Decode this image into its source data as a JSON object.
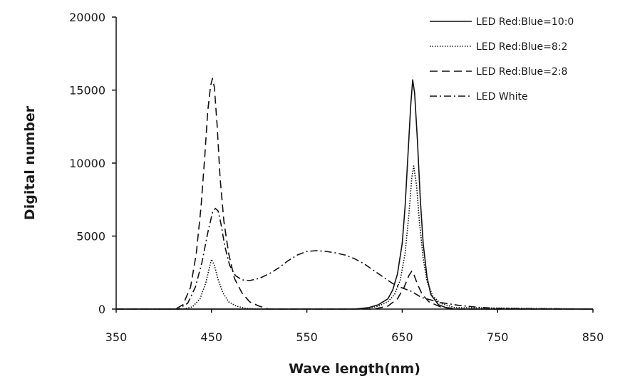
{
  "chart_data": {
    "type": "line",
    "title": "",
    "xlabel": "Wave length(nm)",
    "ylabel": "Digital number",
    "xlim": [
      350,
      850
    ],
    "ylim": [
      0,
      20000
    ],
    "xticks": [
      "350",
      "450",
      "550",
      "650",
      "750",
      "850"
    ],
    "yticks": [
      "0",
      "5000",
      "10000",
      "15000",
      "20000"
    ],
    "grid": false,
    "legend_position": "top-right",
    "series": [
      {
        "name": "LED Red:Blue=10:0",
        "line_style": "solid",
        "x": [
          350,
          600,
          615,
          625,
          635,
          640,
          645,
          650,
          653,
          656,
          659,
          661,
          663,
          666,
          669,
          672,
          676,
          680,
          688,
          700,
          850
        ],
        "y": [
          0,
          0,
          100,
          300,
          700,
          1300,
          2400,
          4500,
          7000,
          10500,
          14000,
          15700,
          14800,
          11500,
          7500,
          4500,
          2200,
          1000,
          300,
          0,
          0
        ]
      },
      {
        "name": "LED Red:Blue=8:2",
        "line_style": "dotted",
        "x": [
          350,
          420,
          430,
          438,
          444,
          448,
          450,
          453,
          457,
          462,
          468,
          476,
          486,
          500,
          610,
          625,
          635,
          642,
          648,
          653,
          657,
          660,
          662,
          665,
          668,
          672,
          676,
          682,
          690,
          705,
          850
        ],
        "y": [
          0,
          0,
          150,
          700,
          1800,
          2900,
          3400,
          3000,
          2000,
          1100,
          500,
          200,
          50,
          0,
          0,
          200,
          500,
          1000,
          2000,
          3800,
          6500,
          9000,
          9800,
          8500,
          6000,
          3500,
          1900,
          900,
          400,
          100,
          0
        ]
      },
      {
        "name": "LED Red:Blue=2:8",
        "line_style": "dashed",
        "x": [
          350,
          412,
          420,
          428,
          434,
          439,
          443,
          446,
          449,
          451,
          453,
          456,
          459,
          463,
          468,
          474,
          482,
          490,
          500,
          510,
          620,
          635,
          645,
          652,
          657,
          660,
          662,
          666,
          671,
          678,
          690,
          710,
          850
        ],
        "y": [
          0,
          0,
          300,
          1500,
          3800,
          7000,
          10500,
          13500,
          15300,
          15800,
          15200,
          12500,
          9000,
          6000,
          3800,
          2100,
          1100,
          500,
          200,
          0,
          0,
          200,
          700,
          1500,
          2300,
          2600,
          2400,
          1700,
          1000,
          500,
          150,
          0,
          0
        ]
      },
      {
        "name": "LED White",
        "line_style": "dash-dot",
        "x": [
          350,
          415,
          425,
          433,
          440,
          446,
          451,
          454,
          457,
          460,
          464,
          469,
          475,
          482,
          490,
          500,
          510,
          520,
          530,
          540,
          550,
          560,
          570,
          580,
          590,
          600,
          610,
          620,
          630,
          640,
          650,
          660,
          670,
          690,
          710,
          730,
          750,
          850
        ],
        "y": [
          0,
          0,
          400,
          1500,
          3200,
          5200,
          6600,
          6900,
          6700,
          5800,
          4300,
          3000,
          2300,
          2000,
          1950,
          2100,
          2400,
          2800,
          3300,
          3700,
          3950,
          4000,
          3950,
          3850,
          3700,
          3450,
          3100,
          2650,
          2200,
          1750,
          1450,
          1200,
          800,
          450,
          250,
          120,
          50,
          0
        ]
      }
    ]
  }
}
